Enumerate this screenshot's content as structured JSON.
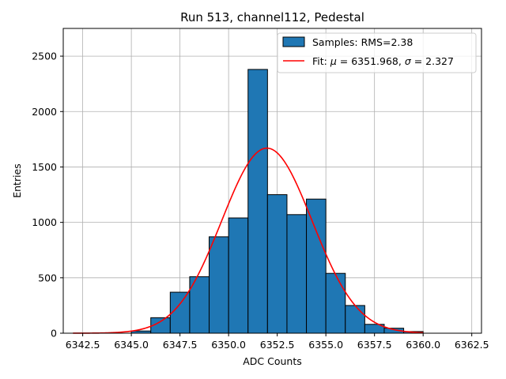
{
  "chart_data": {
    "type": "bar",
    "title": "Run 513, channel112, Pedestal",
    "xlabel": "ADC Counts",
    "ylabel": "Entries",
    "xlim": [
      6341.5,
      6363.0
    ],
    "ylim": [
      0,
      2750
    ],
    "grid": true,
    "xticks": [
      6342.5,
      6345.0,
      6347.5,
      6350.0,
      6352.5,
      6355.0,
      6357.5,
      6360.0,
      6362.5
    ],
    "xtick_labels": [
      "6342.5",
      "6345.0",
      "6347.5",
      "6350.0",
      "6352.5",
      "6355.0",
      "6357.5",
      "6360.0",
      "6362.5"
    ],
    "yticks": [
      0,
      500,
      1000,
      1500,
      2000,
      2500
    ],
    "ytick_labels": [
      "0",
      "500",
      "1000",
      "1500",
      "2000",
      "2500"
    ],
    "bin_width": 1,
    "bins": [
      {
        "left": 6345,
        "value": 20
      },
      {
        "left": 6346,
        "value": 140
      },
      {
        "left": 6347,
        "value": 370
      },
      {
        "left": 6348,
        "value": 510
      },
      {
        "left": 6349,
        "value": 870
      },
      {
        "left": 6350,
        "value": 1040
      },
      {
        "left": 6351,
        "value": 2380
      },
      {
        "left": 6352,
        "value": 1250
      },
      {
        "left": 6353,
        "value": 1070
      },
      {
        "left": 6354,
        "value": 1210
      },
      {
        "left": 6355,
        "value": 540
      },
      {
        "left": 6356,
        "value": 250
      },
      {
        "left": 6357,
        "value": 80
      },
      {
        "left": 6358,
        "value": 45
      },
      {
        "left": 6359,
        "value": 15
      }
    ],
    "fit": {
      "mu": 6351.968,
      "sigma": 2.327,
      "amplitude": 1670,
      "x_start": 6342.0,
      "x_end": 6360.0
    },
    "legend": {
      "placement": "top-right",
      "entries": [
        {
          "label": "Samples: RMS=2.38",
          "kind": "patch"
        },
        {
          "label_prefix": "Fit: ",
          "mu_symbol": "μ",
          "mu_text": " = 6351.968, ",
          "sigma_symbol": "σ",
          "sigma_text": " = 2.327",
          "kind": "line"
        }
      ]
    },
    "colors": {
      "bar_fill": "#1f77b4",
      "bar_edge": "#000000",
      "fit_line": "#ff0000",
      "grid": "#b0b0b0"
    }
  }
}
